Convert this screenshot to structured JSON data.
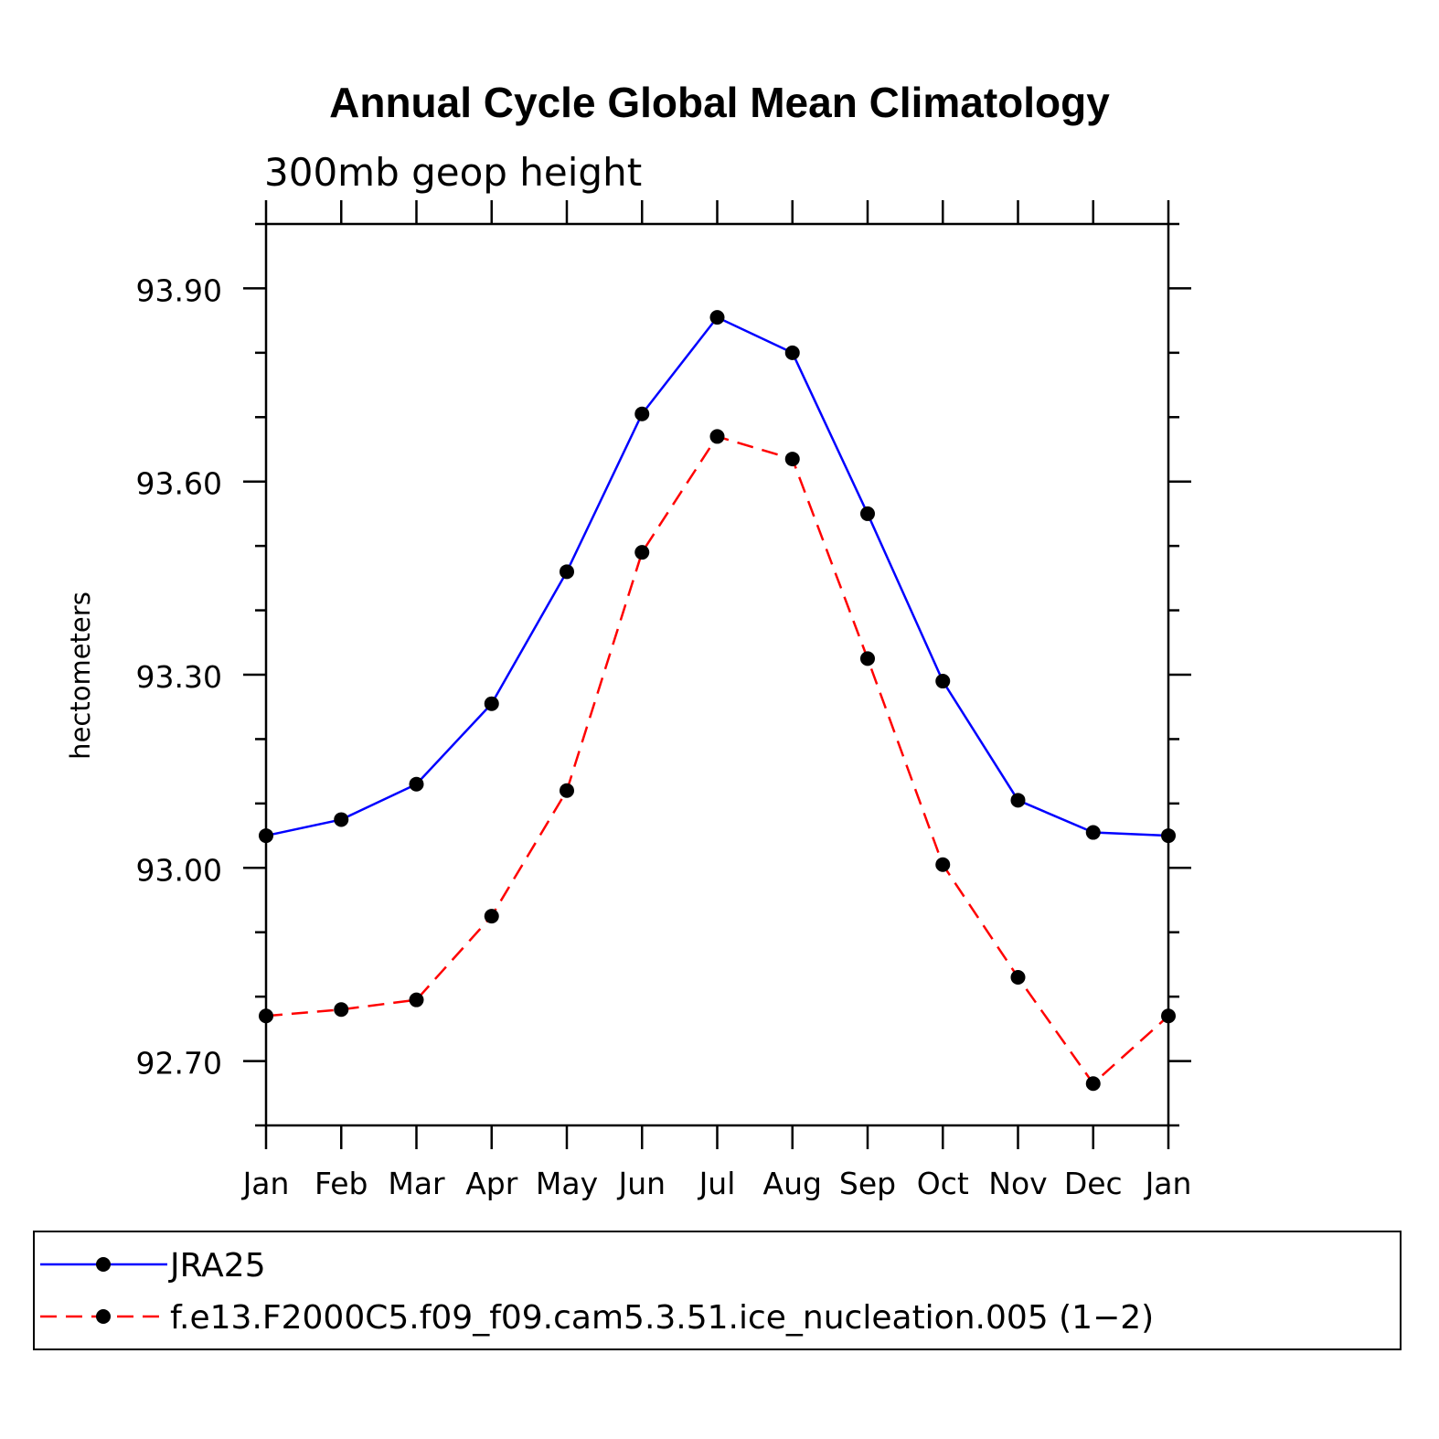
{
  "chart_data": {
    "type": "line",
    "title": "Annual Cycle Global Mean Climatology",
    "subtitle": "300mb geop height",
    "xlabel": "",
    "ylabel": "hectometers",
    "categories": [
      "Jan",
      "Feb",
      "Mar",
      "Apr",
      "May",
      "Jun",
      "Jul",
      "Aug",
      "Sep",
      "Oct",
      "Nov",
      "Dec",
      "Jan"
    ],
    "ylim": [
      92.6,
      94.0
    ],
    "yticks": [
      "93.90",
      "93.60",
      "93.30",
      "93.00",
      "92.70"
    ],
    "ytick_values": [
      93.9,
      93.6,
      93.3,
      93.0,
      92.7
    ],
    "grid": false,
    "legend_position": "bottom",
    "series": [
      {
        "name": "JRA25",
        "color": "#0000ff",
        "dash": "solid",
        "values": [
          93.05,
          93.075,
          93.13,
          93.255,
          93.46,
          93.705,
          93.855,
          93.8,
          93.55,
          93.29,
          93.105,
          93.055,
          93.05
        ]
      },
      {
        "name": "f.e13.F2000C5.f09_f09.cam5.3.51.ice_nucleation.005 (1−2)",
        "color": "#ff0000",
        "dash": "dashed",
        "values": [
          92.77,
          92.78,
          92.795,
          92.925,
          93.12,
          93.49,
          93.67,
          93.635,
          93.325,
          93.005,
          92.83,
          92.665,
          92.77
        ]
      }
    ]
  }
}
